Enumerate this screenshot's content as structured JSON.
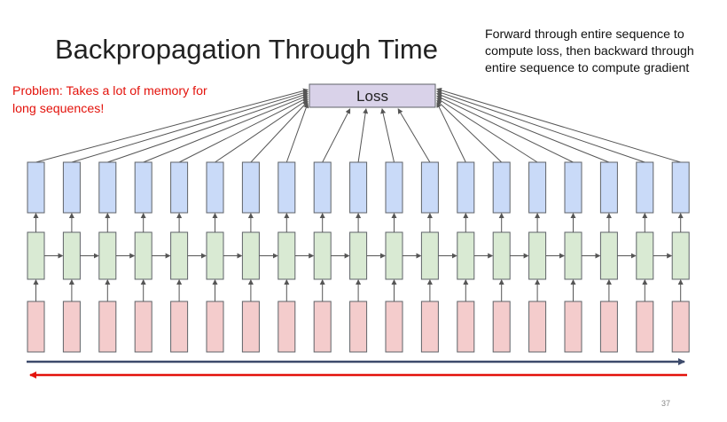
{
  "slide": {
    "title": "Backpropagation Through Time",
    "note": "Forward through entire sequence to compute loss, then backward through entire sequence to compute gradient",
    "problem": "Problem: Takes a lot of memory for long sequences!",
    "page_number": "37"
  },
  "diagram": {
    "loss_label": "Loss",
    "timesteps": 19,
    "colors": {
      "output_fill": "#c9daf8",
      "hidden_fill": "#d9ead3",
      "input_fill": "#f4cccc",
      "loss_fill": "#d9d2e9",
      "box_stroke": "#5f6368",
      "arrow": "#555555",
      "forward_arrow": "#3c4a6b",
      "backward_arrow": "#e3120b"
    }
  }
}
